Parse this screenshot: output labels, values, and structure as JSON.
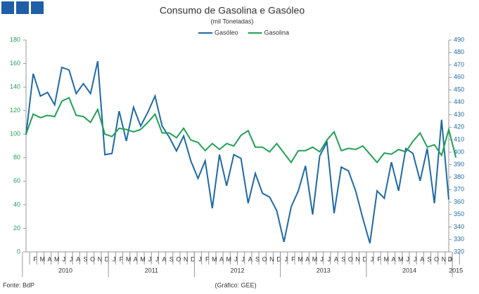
{
  "chart_data": {
    "type": "line",
    "title": "Consumo de Gasolina e Gasóleo",
    "subtitle": "(mil Toneladas)",
    "categories": [
      null,
      "F",
      "M",
      "A",
      "M",
      "J",
      "J",
      "A",
      "S",
      "O",
      "N",
      "D",
      "J",
      "F",
      "M",
      "A",
      "M",
      "J",
      "J",
      "A",
      "S",
      "O",
      "N",
      "D",
      "J",
      "F",
      "M",
      "A",
      "M",
      "J",
      "J",
      "A",
      "S",
      "O",
      "N",
      "D",
      "J",
      "F",
      "M",
      "A",
      "M",
      "J",
      "J",
      "A",
      "S",
      "O",
      "N",
      "D",
      "J",
      "F",
      "M",
      "A",
      "M",
      "J",
      "J",
      "A",
      "S",
      "O",
      "N",
      "D",
      "J"
    ],
    "years": [
      "2010",
      "2011",
      "2012",
      "2013",
      "2014",
      "2015"
    ],
    "series": [
      {
        "name": "Gasóleo",
        "color": "#1f6aa5",
        "axis": "y2",
        "values": [
          414,
          463,
          445,
          448,
          438,
          468,
          466,
          447,
          455,
          447,
          473,
          398,
          399,
          433,
          409,
          436,
          421,
          432,
          445,
          421,
          412,
          401,
          413,
          393,
          379,
          393,
          355,
          398,
          373,
          398,
          395,
          359,
          383,
          367,
          364,
          353,
          328,
          356,
          369,
          389,
          350,
          397,
          408,
          351,
          388,
          385,
          369,
          347,
          327,
          369,
          363,
          392,
          369,
          403,
          399,
          377,
          403,
          359,
          426,
          362,
          null
        ]
      },
      {
        "name": "Gasolina",
        "color": "#22a055",
        "values": [
          100,
          117,
          114,
          116,
          115,
          128,
          131,
          116,
          115,
          110,
          121,
          100,
          98,
          105,
          104,
          102,
          104,
          110,
          117,
          101,
          101,
          97,
          105,
          95,
          93,
          86,
          92,
          87,
          92,
          90,
          99,
          103,
          89,
          89,
          85,
          92,
          84,
          76,
          86,
          86,
          89,
          85,
          95,
          102,
          86,
          88,
          87,
          90,
          83,
          76,
          84,
          83,
          87,
          85,
          94,
          101,
          89,
          91,
          82,
          104,
          80
        ]
      }
    ],
    "ylim": [
      0,
      180
    ],
    "yticks": [
      0,
      20,
      40,
      60,
      80,
      100,
      120,
      140,
      160,
      180
    ],
    "y2lim": [
      320,
      490
    ],
    "y2ticks": [
      320,
      330,
      340,
      350,
      360,
      370,
      380,
      390,
      400,
      410,
      420,
      430,
      440,
      450,
      460,
      470,
      480,
      490
    ],
    "left_axis_color": "#22a055",
    "right_axis_color": "#1f6aa5",
    "footer_left": "Fonte: BdP",
    "footer_center": "(Gráfico: GEE)"
  }
}
